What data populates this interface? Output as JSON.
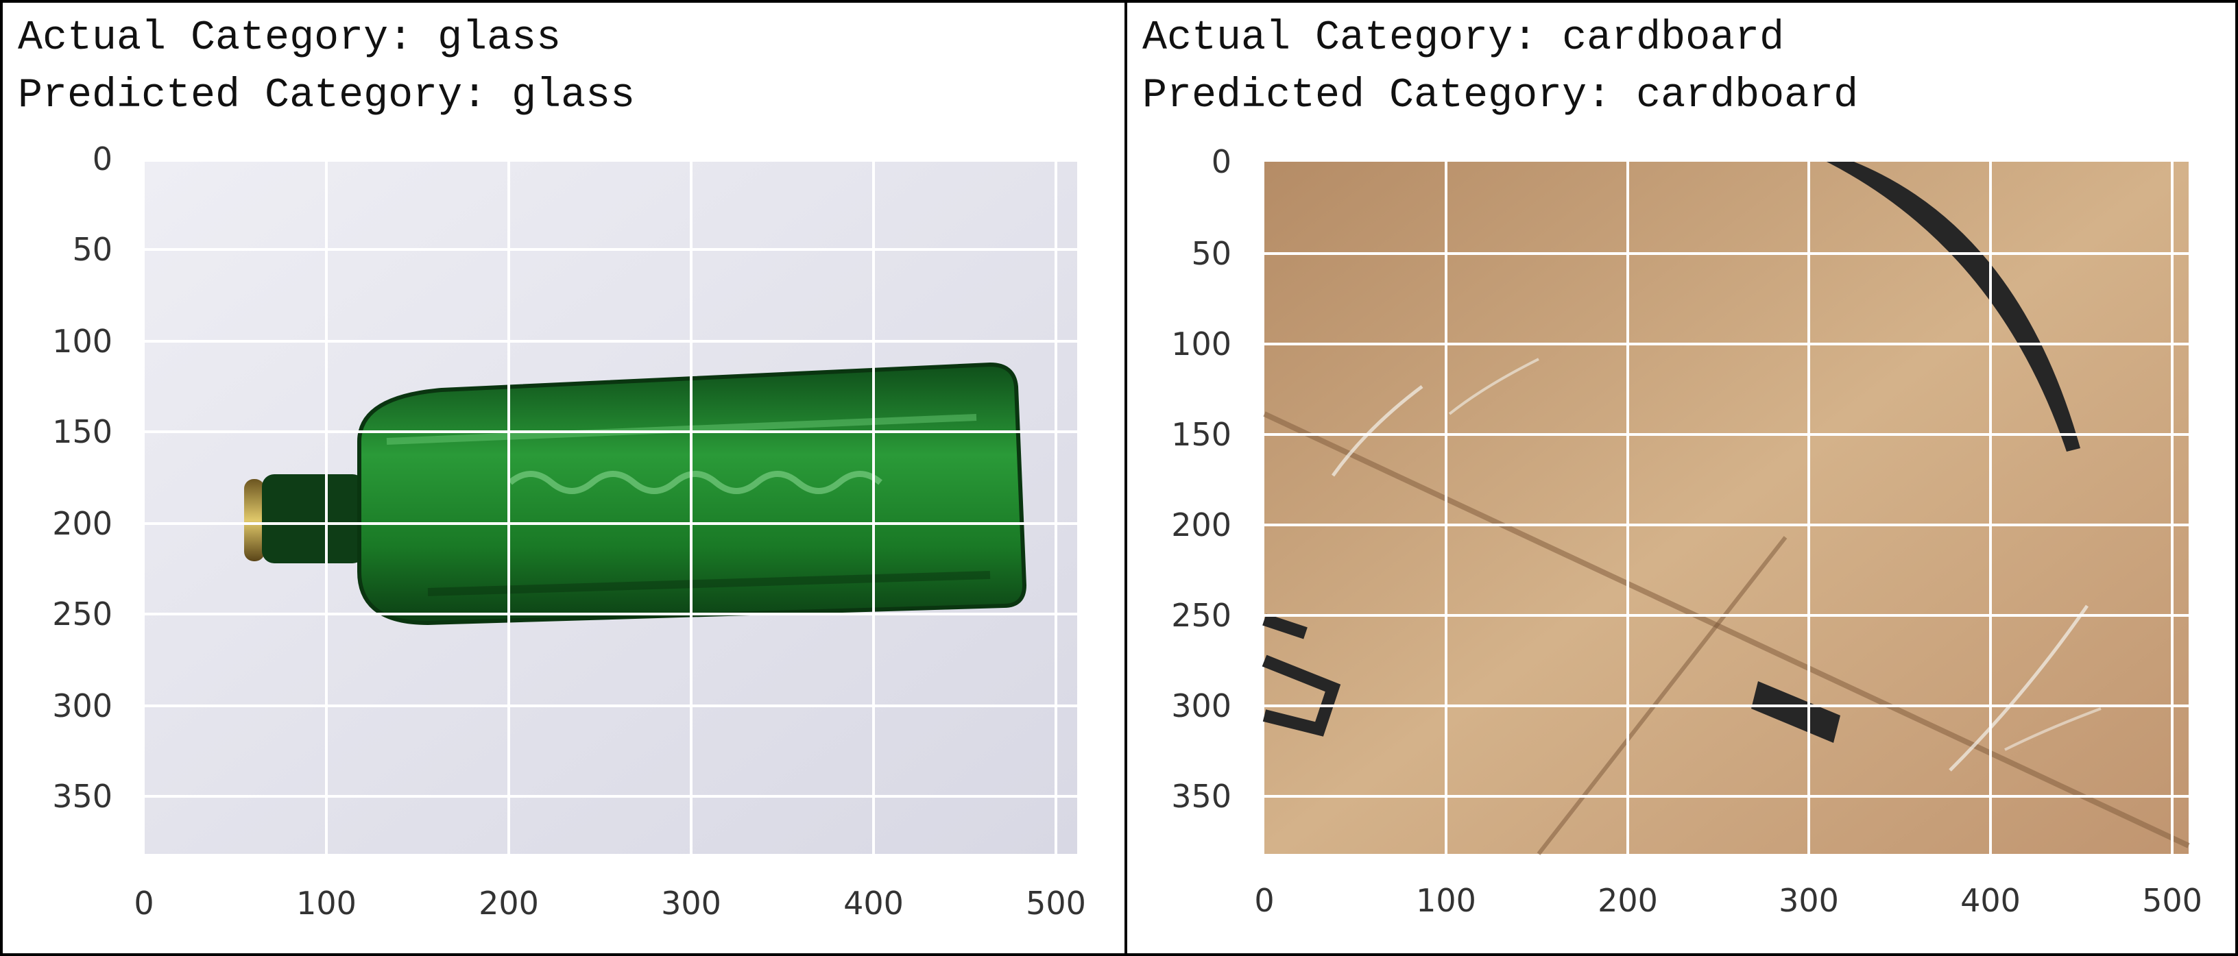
{
  "panels": [
    {
      "actual_label": "Actual Category:",
      "actual_value": "glass",
      "predicted_label": "Predicted Category:",
      "predicted_value": "glass",
      "actual_text": "Actual Category: glass",
      "predicted_text": "Predicted Category: glass",
      "image_subject": "green-glass-bottle",
      "y_ticks": [
        "0",
        "50",
        "100",
        "150",
        "200",
        "250",
        "300",
        "350"
      ],
      "x_ticks": [
        "0",
        "100",
        "200",
        "300",
        "400",
        "500"
      ],
      "colors": {
        "background": "#e6e6ef",
        "bottle": "#1f7a2a",
        "grid": "#ffffff"
      }
    },
    {
      "actual_label": "Actual Category:",
      "actual_value": "cardboard",
      "predicted_label": "Predicted Category:",
      "predicted_value": "cardboard",
      "actual_text": "Actual Category: cardboard",
      "predicted_text": "Predicted Category: cardboard",
      "image_subject": "cardboard-box-surface",
      "y_ticks": [
        "0",
        "50",
        "100",
        "150",
        "200",
        "250",
        "300",
        "350"
      ],
      "x_ticks": [
        "0",
        "100",
        "200",
        "300",
        "400",
        "500"
      ],
      "colors": {
        "background": "#c9a57e",
        "marking": "#2a2a2a",
        "grid": "#ffffff"
      }
    }
  ]
}
